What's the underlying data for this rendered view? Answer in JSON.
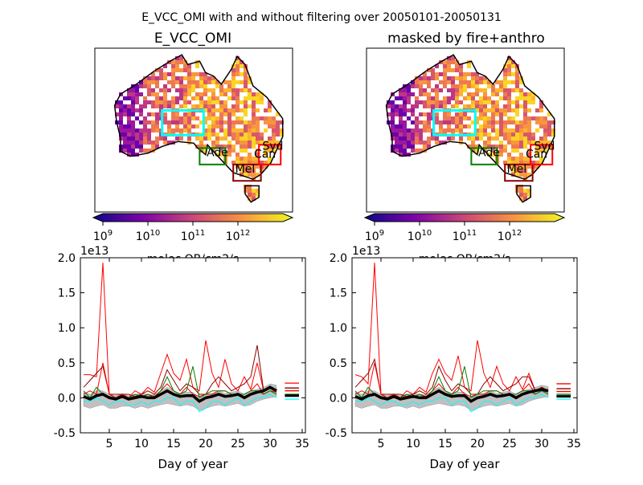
{
  "suptitle": "E_VCC_OMI with and without filtering over 20050101-20050131",
  "colors": {
    "syd": "#ff0000",
    "can": "#ff0000",
    "mel": "#8b0000",
    "ade": "#008000",
    "centre": "#00ffff",
    "mean": "#000000",
    "range": "#c0c0c0"
  },
  "maps": [
    {
      "title": "E_VCC_OMI",
      "colorbar": {
        "ticks": [
          "10^9",
          "10^10",
          "10^11",
          "10^12"
        ],
        "label": "molec OB/cm2/s",
        "extend": "both",
        "cmap": "plasma"
      },
      "regions": [
        {
          "label": "Ade",
          "color": "#008000"
        },
        {
          "label": "Mel",
          "color": "#8b0000"
        },
        {
          "label": "Syd",
          "color": "#ff0000"
        },
        {
          "label": "Can",
          "color": "#ff0000"
        },
        {
          "label": "",
          "color": "#00ffff"
        }
      ]
    },
    {
      "title": "masked by fire+anthro",
      "colorbar": {
        "ticks": [
          "10^9",
          "10^10",
          "10^11",
          "10^12"
        ],
        "label": "molec OB/cm2/s",
        "extend": "both",
        "cmap": "plasma"
      },
      "regions": [
        {
          "label": "Ade",
          "color": "#008000"
        },
        {
          "label": "Mel",
          "color": "#8b0000"
        },
        {
          "label": "Syd",
          "color": "#ff0000"
        },
        {
          "label": "Can",
          "color": "#ff0000"
        },
        {
          "label": "",
          "color": "#00ffff"
        }
      ]
    }
  ],
  "chart_data": [
    {
      "type": "line",
      "title": "",
      "xlabel": "Day of year",
      "ylabel": "",
      "offset_label": "1e13",
      "xlim": [
        0.5,
        35.5
      ],
      "ylim": [
        -0.5,
        2.0
      ],
      "xticks": [
        5,
        10,
        15,
        20,
        25,
        30,
        35
      ],
      "yticks": [
        -0.5,
        0.0,
        0.5,
        1.0,
        1.5,
        2.0
      ],
      "x": [
        1,
        2,
        3,
        4,
        5,
        6,
        7,
        8,
        9,
        10,
        11,
        12,
        13,
        14,
        15,
        16,
        17,
        18,
        19,
        20,
        21,
        22,
        23,
        24,
        25,
        26,
        27,
        28,
        29,
        30,
        31
      ],
      "series": [
        {
          "color": "#ff0000",
          "values": [
            0.33,
            0.33,
            0.3,
            1.93,
            0.05,
            0.0,
            0.05,
            0.0,
            0.1,
            0.05,
            0.15,
            0.08,
            0.35,
            0.62,
            0.35,
            0.25,
            0.55,
            0.15,
            0.1,
            0.82,
            0.35,
            0.15,
            0.55,
            0.2,
            0.1,
            0.3,
            0.12,
            0.5,
            0.1,
            0.15,
            0.1
          ],
          "summary": 0.21
        },
        {
          "color": "#8b0000",
          "values": [
            0.15,
            0.25,
            0.35,
            0.45,
            0.05,
            0.05,
            0.05,
            0.05,
            0.02,
            0.05,
            0.1,
            0.05,
            0.15,
            0.4,
            0.25,
            0.1,
            0.2,
            0.15,
            0.05,
            0.05,
            0.2,
            0.3,
            0.2,
            0.1,
            0.15,
            0.2,
            0.3,
            0.75,
            0.1,
            0.15,
            0.1
          ],
          "summary": 0.14
        },
        {
          "color": "#ff0000",
          "values": [
            0.05,
            0.1,
            0.05,
            0.5,
            0.05,
            0.0,
            0.05,
            0.0,
            0.02,
            0.0,
            0.05,
            0.02,
            0.1,
            0.2,
            0.1,
            0.05,
            0.15,
            0.05,
            0.02,
            0.05,
            0.05,
            0.1,
            0.1,
            0.05,
            0.05,
            0.05,
            0.1,
            0.2,
            0.05,
            0.1,
            0.08
          ],
          "summary": 0.1
        },
        {
          "color": "#008000",
          "values": [
            0.1,
            0.0,
            0.15,
            0.05,
            0.02,
            0.0,
            0.03,
            0.0,
            0.05,
            0.02,
            0.05,
            0.0,
            0.1,
            0.3,
            0.1,
            0.05,
            0.1,
            0.45,
            0.0,
            0.05,
            0.1,
            0.1,
            0.1,
            0.05,
            0.05,
            0.05,
            0.1,
            0.1,
            0.05,
            0.1,
            0.05
          ],
          "summary": 0.05
        },
        {
          "color": "#00ffff",
          "values": [
            -0.05,
            -0.05,
            0.0,
            -0.05,
            -0.1,
            -0.05,
            -0.05,
            -0.1,
            -0.1,
            -0.05,
            -0.1,
            -0.05,
            -0.05,
            0.0,
            0.0,
            -0.1,
            -0.05,
            -0.05,
            -0.2,
            -0.15,
            -0.05,
            -0.05,
            -0.1,
            -0.05,
            0.0,
            -0.1,
            -0.05,
            0.0,
            0.0,
            0.05,
            0.0
          ],
          "summary": -0.02
        },
        {
          "color": "#000000",
          "values": [
            0.02,
            -0.02,
            0.03,
            0.05,
            0.0,
            -0.02,
            0.02,
            -0.02,
            0.0,
            0.02,
            0.0,
            0.0,
            0.05,
            0.1,
            0.05,
            0.02,
            0.03,
            0.03,
            -0.05,
            0.0,
            0.02,
            0.05,
            0.02,
            0.03,
            0.05,
            0.0,
            0.05,
            0.08,
            0.1,
            0.15,
            0.1
          ],
          "summary": 0.03
        }
      ],
      "range": {
        "lower": [
          -0.12,
          -0.15,
          -0.12,
          -0.1,
          -0.15,
          -0.15,
          -0.12,
          -0.12,
          -0.15,
          -0.12,
          -0.15,
          -0.12,
          -0.1,
          -0.08,
          -0.1,
          -0.12,
          -0.1,
          -0.12,
          -0.18,
          -0.15,
          -0.12,
          -0.1,
          -0.12,
          -0.1,
          -0.08,
          -0.12,
          -0.1,
          -0.05,
          -0.02,
          0.0,
          0.02
        ],
        "upper": [
          0.08,
          0.05,
          0.1,
          0.1,
          0.05,
          0.03,
          0.06,
          0.03,
          0.05,
          0.06,
          0.05,
          0.04,
          0.1,
          0.15,
          0.1,
          0.06,
          0.08,
          0.08,
          0.0,
          0.05,
          0.06,
          0.1,
          0.06,
          0.08,
          0.1,
          0.05,
          0.1,
          0.12,
          0.15,
          0.2,
          0.18
        ]
      }
    },
    {
      "type": "line",
      "title": "",
      "xlabel": "Day of year",
      "ylabel": "",
      "offset_label": "1e13",
      "xlim": [
        0.5,
        35.5
      ],
      "ylim": [
        -0.5,
        2.0
      ],
      "xticks": [
        5,
        10,
        15,
        20,
        25,
        30,
        35
      ],
      "yticks": [
        -0.5,
        0.0,
        0.5,
        1.0,
        1.5,
        2.0
      ],
      "x": [
        1,
        2,
        3,
        4,
        5,
        6,
        7,
        8,
        9,
        10,
        11,
        12,
        13,
        14,
        15,
        16,
        17,
        18,
        19,
        20,
        21,
        22,
        23,
        24,
        25,
        26,
        27,
        28,
        29,
        30,
        31
      ],
      "series": [
        {
          "color": "#ff0000",
          "values": [
            0.33,
            0.3,
            0.2,
            1.93,
            0.05,
            0.0,
            0.05,
            0.0,
            0.1,
            0.05,
            0.15,
            0.08,
            0.35,
            0.55,
            0.35,
            0.25,
            0.6,
            0.15,
            0.1,
            0.82,
            0.35,
            0.15,
            0.45,
            0.2,
            0.1,
            0.3,
            0.12,
            0.35,
            0.1,
            0.15,
            0.1
          ],
          "summary": 0.2
        },
        {
          "color": "#8b0000",
          "values": [
            0.15,
            0.25,
            0.35,
            0.55,
            0.05,
            0.05,
            0.05,
            0.05,
            0.02,
            0.05,
            0.1,
            0.05,
            0.15,
            0.45,
            0.25,
            0.1,
            0.2,
            0.15,
            0.05,
            0.05,
            0.2,
            0.3,
            0.2,
            0.1,
            0.15,
            0.2,
            0.3,
            0.3,
            0.1,
            0.15,
            0.1
          ],
          "summary": 0.13
        },
        {
          "color": "#ff0000",
          "values": [
            0.05,
            0.1,
            0.05,
            0.5,
            0.05,
            0.0,
            0.05,
            0.0,
            0.02,
            0.0,
            0.05,
            0.02,
            0.1,
            0.2,
            0.1,
            0.05,
            0.15,
            0.05,
            0.02,
            0.05,
            0.05,
            0.1,
            0.1,
            0.05,
            0.05,
            0.05,
            0.1,
            0.2,
            0.05,
            0.1,
            0.08
          ],
          "summary": 0.09
        },
        {
          "color": "#008000",
          "values": [
            0.1,
            0.0,
            0.15,
            0.05,
            0.02,
            0.0,
            0.03,
            0.0,
            0.05,
            0.02,
            0.05,
            0.0,
            0.1,
            0.3,
            0.1,
            0.05,
            0.1,
            0.45,
            0.0,
            0.05,
            0.1,
            0.1,
            0.1,
            0.05,
            0.05,
            0.05,
            0.1,
            0.1,
            0.05,
            0.1,
            0.05
          ],
          "summary": 0.05
        },
        {
          "color": "#00ffff",
          "values": [
            -0.05,
            -0.05,
            0.0,
            -0.05,
            -0.1,
            -0.05,
            -0.05,
            -0.1,
            -0.1,
            -0.05,
            -0.1,
            -0.05,
            -0.05,
            0.0,
            0.0,
            -0.1,
            -0.05,
            -0.05,
            -0.2,
            -0.15,
            -0.05,
            -0.05,
            -0.1,
            -0.05,
            0.0,
            -0.1,
            -0.05,
            0.0,
            0.0,
            0.05,
            0.0
          ],
          "summary": -0.02
        },
        {
          "color": "#000000",
          "values": [
            0.02,
            -0.02,
            0.03,
            0.05,
            0.0,
            -0.02,
            0.02,
            -0.02,
            0.0,
            0.02,
            0.0,
            0.0,
            0.05,
            0.1,
            0.05,
            0.02,
            0.03,
            0.03,
            -0.05,
            0.0,
            0.02,
            0.05,
            0.02,
            0.03,
            0.05,
            0.0,
            0.05,
            0.08,
            0.1,
            0.12,
            0.1
          ],
          "summary": 0.02
        }
      ],
      "range": {
        "lower": [
          -0.12,
          -0.15,
          -0.12,
          -0.1,
          -0.15,
          -0.15,
          -0.12,
          -0.12,
          -0.15,
          -0.12,
          -0.15,
          -0.12,
          -0.1,
          -0.08,
          -0.1,
          -0.12,
          -0.1,
          -0.12,
          -0.18,
          -0.15,
          -0.12,
          -0.1,
          -0.12,
          -0.1,
          -0.08,
          -0.12,
          -0.1,
          -0.05,
          -0.02,
          0.0,
          0.02
        ],
        "upper": [
          0.08,
          0.05,
          0.1,
          0.1,
          0.05,
          0.03,
          0.06,
          0.03,
          0.05,
          0.06,
          0.05,
          0.04,
          0.1,
          0.15,
          0.1,
          0.06,
          0.08,
          0.08,
          0.0,
          0.05,
          0.06,
          0.1,
          0.06,
          0.08,
          0.1,
          0.05,
          0.1,
          0.12,
          0.15,
          0.18,
          0.16
        ]
      }
    }
  ]
}
